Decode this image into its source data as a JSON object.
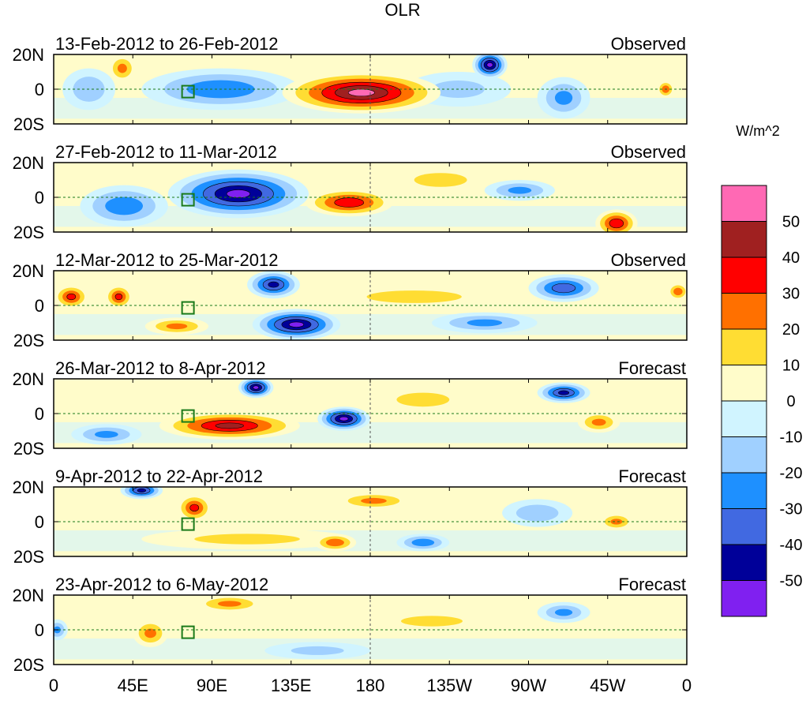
{
  "chart_data": {
    "type": "heatmap",
    "title": "OLR",
    "units": "W/m^2",
    "lat_tick_labels": [
      "20N",
      "0",
      "20S"
    ],
    "lat_range": [
      -20,
      20
    ],
    "lon_range": [
      0,
      360
    ],
    "lon_ticks": [
      0,
      45,
      90,
      135,
      180,
      225,
      270,
      315,
      360
    ],
    "lon_tick_labels": [
      "0",
      "45E",
      "90E",
      "135E",
      "180",
      "135W",
      "90W",
      "45W",
      "0"
    ],
    "colorbar": {
      "levels": [
        -50,
        -40,
        -30,
        -20,
        -10,
        0,
        10,
        20,
        30,
        40,
        50
      ],
      "level_labels": [
        "-50",
        "-40",
        "-30",
        "-20",
        "-10",
        "0",
        "10",
        "20",
        "30",
        "40",
        "50"
      ],
      "colors": [
        "#8020f0",
        "#000099",
        "#4169e1",
        "#1e90ff",
        "#a0d0ff",
        "#d0f4ff",
        "#fffcca",
        "#ffdd33",
        "#ff7000",
        "#ff0000",
        "#a02020",
        "#ff69b4"
      ]
    },
    "panels": [
      {
        "period": "13-Feb-2012 to 26-Feb-2012",
        "kind": "Observed",
        "features": [
          {
            "lon": 175,
            "lat": -2,
            "value": 55,
            "dlon": 45,
            "dlat": 12
          },
          {
            "lon": 95,
            "lat": 0,
            "value": -30,
            "dlon": 45,
            "dlat": 12
          },
          {
            "lon": 248,
            "lat": 14,
            "value": -55,
            "dlon": 10,
            "dlat": 8
          },
          {
            "lon": 230,
            "lat": 0,
            "value": -15,
            "dlon": 30,
            "dlat": 10
          },
          {
            "lon": 39,
            "lat": 12,
            "value": 25,
            "dlon": 8,
            "dlat": 8
          },
          {
            "lon": 20,
            "lat": 0,
            "value": -20,
            "dlon": 15,
            "dlat": 12
          },
          {
            "lon": 290,
            "lat": -5,
            "value": -25,
            "dlon": 15,
            "dlat": 12
          },
          {
            "lon": 348,
            "lat": 0,
            "value": 30,
            "dlon": 5,
            "dlat": 5
          }
        ]
      },
      {
        "period": "27-Feb-2012 to 11-Mar-2012",
        "kind": "Observed",
        "features": [
          {
            "lon": 105,
            "lat": 2,
            "value": -55,
            "dlon": 40,
            "dlat": 14
          },
          {
            "lon": 40,
            "lat": -5,
            "value": -30,
            "dlon": 25,
            "dlat": 12
          },
          {
            "lon": 168,
            "lat": -3,
            "value": 40,
            "dlon": 25,
            "dlat": 8
          },
          {
            "lon": 320,
            "lat": -15,
            "value": 40,
            "dlon": 12,
            "dlat": 8
          },
          {
            "lon": 265,
            "lat": 4,
            "value": -25,
            "dlon": 20,
            "dlat": 6
          },
          {
            "lon": 220,
            "lat": 10,
            "value": 15,
            "dlon": 30,
            "dlat": 8
          }
        ]
      },
      {
        "period": "12-Mar-2012 to 25-Mar-2012",
        "kind": "Observed",
        "features": [
          {
            "lon": 10,
            "lat": 5,
            "value": 35,
            "dlon": 10,
            "dlat": 7
          },
          {
            "lon": 37,
            "lat": 5,
            "value": 35,
            "dlon": 8,
            "dlat": 7
          },
          {
            "lon": 138,
            "lat": -11,
            "value": -55,
            "dlon": 25,
            "dlat": 9
          },
          {
            "lon": 125,
            "lat": 12,
            "value": -45,
            "dlon": 15,
            "dlat": 8
          },
          {
            "lon": 70,
            "lat": -12,
            "value": 25,
            "dlon": 18,
            "dlat": 5
          },
          {
            "lon": 205,
            "lat": 5,
            "value": 20,
            "dlon": 45,
            "dlat": 6
          },
          {
            "lon": 290,
            "lat": 10,
            "value": -40,
            "dlon": 20,
            "dlat": 8
          },
          {
            "lon": 245,
            "lat": -10,
            "value": -25,
            "dlon": 30,
            "dlat": 6
          },
          {
            "lon": 355,
            "lat": 8,
            "value": 30,
            "dlon": 6,
            "dlat": 5
          }
        ]
      },
      {
        "period": "26-Mar-2012 to 8-Apr-2012",
        "kind": "Forecast",
        "features": [
          {
            "lon": 100,
            "lat": -7,
            "value": 45,
            "dlon": 40,
            "dlat": 8
          },
          {
            "lon": 165,
            "lat": -3,
            "value": -55,
            "dlon": 15,
            "dlat": 7
          },
          {
            "lon": 115,
            "lat": 15,
            "value": -55,
            "dlon": 10,
            "dlat": 6
          },
          {
            "lon": 290,
            "lat": 12,
            "value": -45,
            "dlon": 15,
            "dlat": 6
          },
          {
            "lon": 310,
            "lat": -5,
            "value": 25,
            "dlon": 12,
            "dlat": 6
          },
          {
            "lon": 210,
            "lat": 8,
            "value": 15,
            "dlon": 30,
            "dlat": 8
          },
          {
            "lon": 30,
            "lat": -12,
            "value": -25,
            "dlon": 20,
            "dlat": 6
          }
        ]
      },
      {
        "period": "9-Apr-2012 to 22-Apr-2012",
        "kind": "Forecast",
        "features": [
          {
            "lon": 80,
            "lat": 8,
            "value": 35,
            "dlon": 10,
            "dlat": 8
          },
          {
            "lon": 110,
            "lat": -10,
            "value": 15,
            "dlon": 60,
            "dlat": 6
          },
          {
            "lon": 160,
            "lat": -12,
            "value": 30,
            "dlon": 12,
            "dlat": 5
          },
          {
            "lon": 182,
            "lat": 12,
            "value": 25,
            "dlon": 22,
            "dlat": 5
          },
          {
            "lon": 210,
            "lat": -12,
            "value": -30,
            "dlon": 15,
            "dlat": 5
          },
          {
            "lon": 50,
            "lat": 18,
            "value": -45,
            "dlon": 12,
            "dlat": 5
          },
          {
            "lon": 320,
            "lat": 0,
            "value": 25,
            "dlon": 10,
            "dlat": 5
          },
          {
            "lon": 275,
            "lat": 5,
            "value": -20,
            "dlon": 20,
            "dlat": 8
          }
        ]
      },
      {
        "period": "23-Apr-2012 to 6-May-2012",
        "kind": "Forecast",
        "features": [
          {
            "lon": 55,
            "lat": -2,
            "value": 25,
            "dlon": 10,
            "dlat": 8
          },
          {
            "lon": 100,
            "lat": 15,
            "value": 25,
            "dlon": 20,
            "dlat": 5
          },
          {
            "lon": 215,
            "lat": 5,
            "value": 15,
            "dlon": 35,
            "dlat": 6
          },
          {
            "lon": 2,
            "lat": 0,
            "value": -25,
            "dlon": 6,
            "dlat": 6
          },
          {
            "lon": 290,
            "lat": 10,
            "value": -25,
            "dlon": 15,
            "dlat": 6
          },
          {
            "lon": 150,
            "lat": -12,
            "value": -15,
            "dlon": 30,
            "dlat": 5
          }
        ]
      }
    ]
  }
}
